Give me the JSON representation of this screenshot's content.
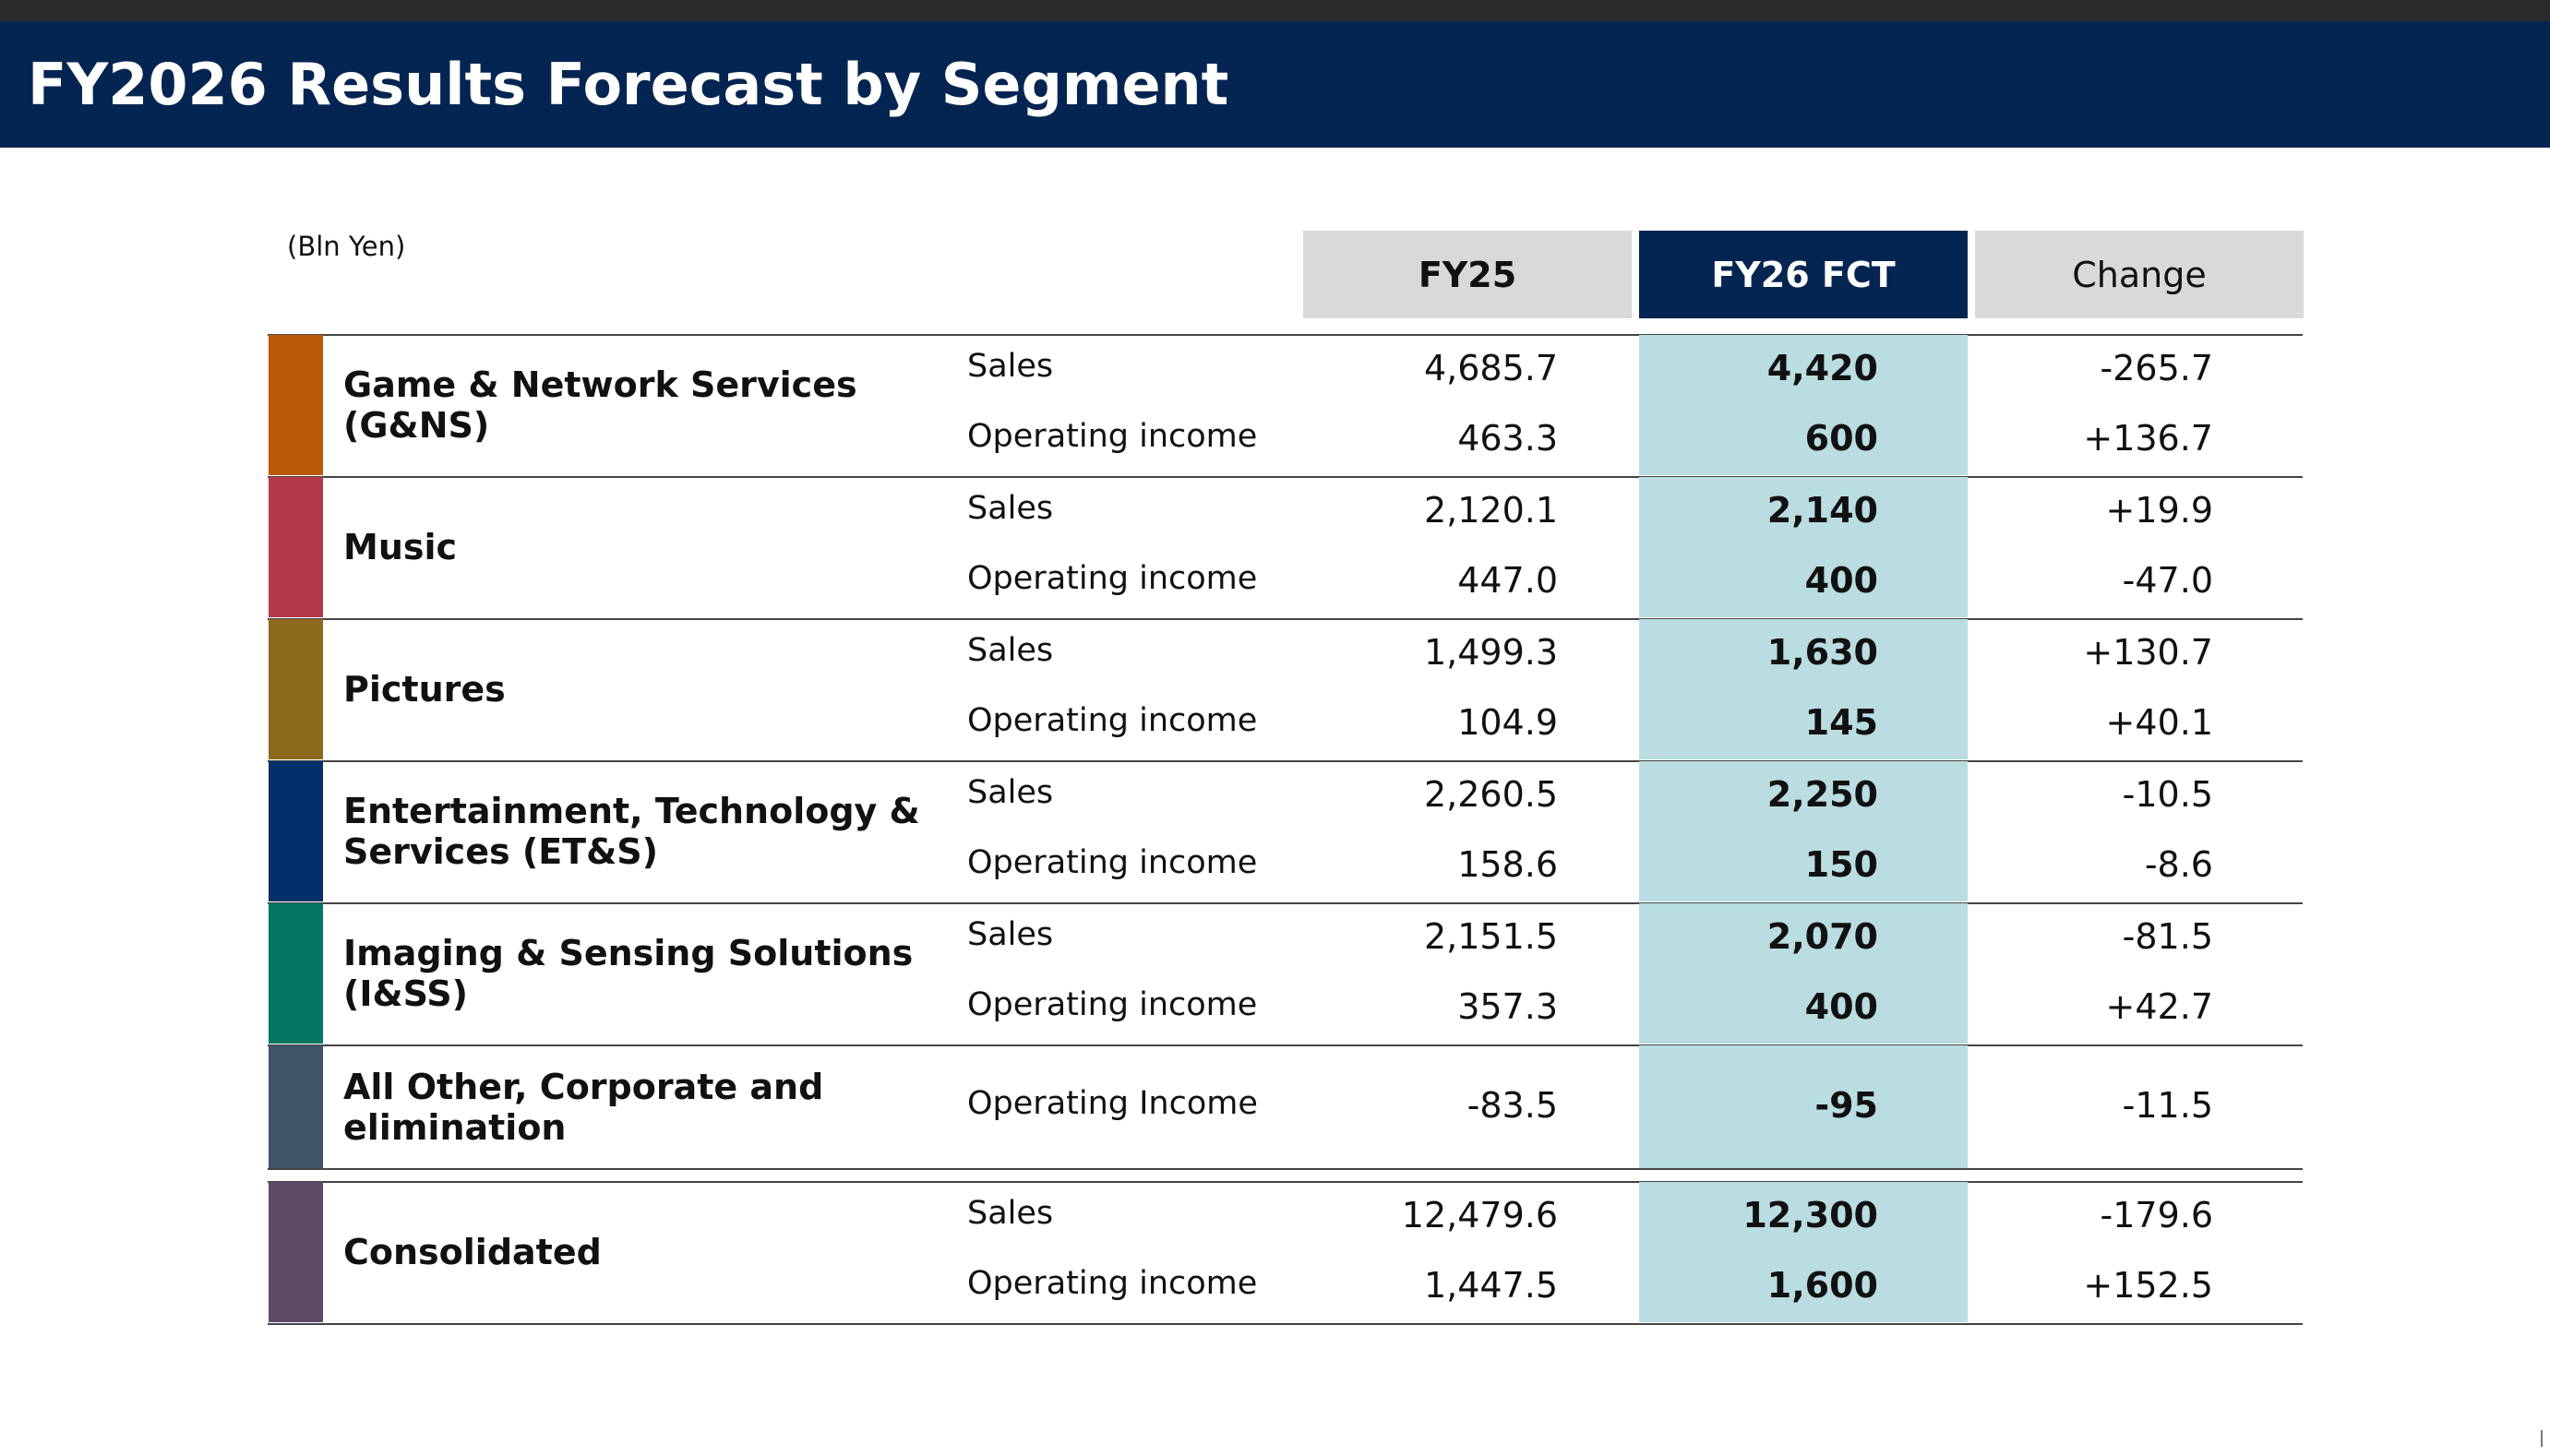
{
  "header": {
    "title": "FY2026 Results Forecast by Segment"
  },
  "table": {
    "unit_label": "(Bln Yen)",
    "columns": [
      "FY25",
      "FY26 FCT",
      "Change"
    ],
    "colors": {
      "header_bg": "#042551",
      "column_header_grey": "#d9d9d9",
      "forecast_band": "#b9dde1"
    },
    "segments": [
      {
        "name_lines": [
          "Game & Network Services",
          "(G&NS)"
        ],
        "color": "#bb5a06",
        "rows": [
          {
            "metric": "Sales",
            "fy25": "4,685.7",
            "fy26": "4,420",
            "change": "-265.7"
          },
          {
            "metric": "Operating income",
            "fy25": "463.3",
            "fy26": "600",
            "change": "+136.7"
          }
        ]
      },
      {
        "name_lines": [
          "Music"
        ],
        "color": "#b2384a",
        "rows": [
          {
            "metric": "Sales",
            "fy25": "2,120.1",
            "fy26": "2,140",
            "change": "+19.9"
          },
          {
            "metric": "Operating income",
            "fy25": "447.0",
            "fy26": "400",
            "change": "-47.0"
          }
        ]
      },
      {
        "name_lines": [
          "Pictures"
        ],
        "color": "#8c6a1d",
        "rows": [
          {
            "metric": "Sales",
            "fy25": "1,499.3",
            "fy26": "1,630",
            "change": "+130.7"
          },
          {
            "metric": "Operating income",
            "fy25": "104.9",
            "fy26": "145",
            "change": "+40.1"
          }
        ]
      },
      {
        "name_lines": [
          "Entertainment, Technology &",
          "Services (ET&S)"
        ],
        "color": "#03306a",
        "rows": [
          {
            "metric": "Sales",
            "fy25": "2,260.5",
            "fy26": "2,250",
            "change": "-10.5"
          },
          {
            "metric": "Operating income",
            "fy25": "158.6",
            "fy26": "150",
            "change": "-8.6"
          }
        ]
      },
      {
        "name_lines": [
          "Imaging & Sensing Solutions",
          "(I&SS)"
        ],
        "color": "#027663",
        "rows": [
          {
            "metric": "Sales",
            "fy25": "2,151.5",
            "fy26": "2,070",
            "change": "-81.5"
          },
          {
            "metric": "Operating income",
            "fy25": "357.3",
            "fy26": "400",
            "change": "+42.7"
          }
        ]
      },
      {
        "name_lines": [
          "All Other, Corporate and",
          "elimination"
        ],
        "color": "#405467",
        "rows": [
          {
            "metric": "Operating Income",
            "fy25": "-83.5",
            "fy26": "-95",
            "change": "-11.5"
          }
        ]
      }
    ],
    "consolidated": {
      "name_lines": [
        "Consolidated"
      ],
      "color": "#5d4a67",
      "rows": [
        {
          "metric": "Sales",
          "fy25": "12,479.6",
          "fy26": "12,300",
          "change": "-179.6"
        },
        {
          "metric": "Operating income",
          "fy25": "1,447.5",
          "fy26": "1,600",
          "change": "+152.5"
        }
      ]
    }
  }
}
